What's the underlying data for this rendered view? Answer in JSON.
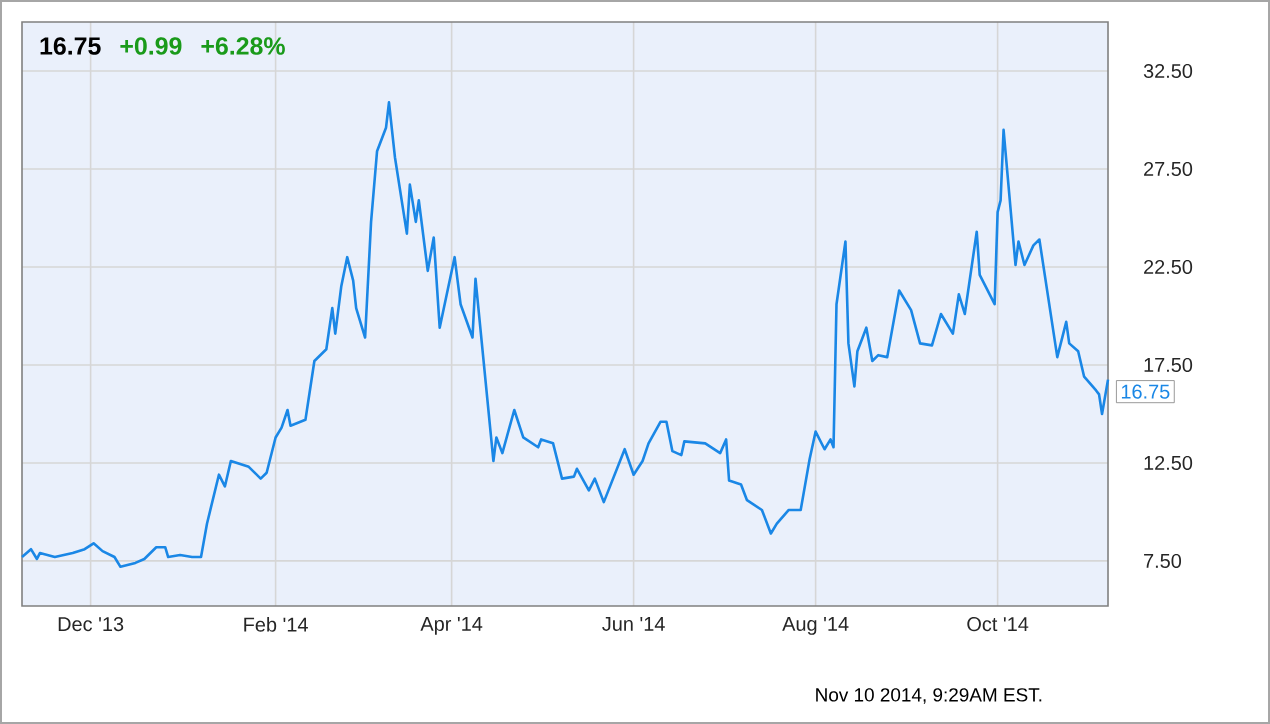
{
  "chart_data": {
    "type": "line",
    "title": "16.75",
    "x": [
      "2013-11-08",
      "2013-11-11",
      "2013-11-13",
      "2013-11-14",
      "2013-11-19",
      "2013-11-22",
      "2013-11-25",
      "2013-11-29",
      "2013-12-02",
      "2013-12-05",
      "2013-12-09",
      "2013-12-11",
      "2013-12-16",
      "2013-12-19",
      "2013-12-23",
      "2013-12-26",
      "2013-12-27",
      "2013-12-31",
      "2014-01-04",
      "2014-01-07",
      "2014-01-09",
      "2014-01-13",
      "2014-01-15",
      "2014-01-17",
      "2014-01-23",
      "2014-01-27",
      "2014-01-29",
      "2014-02-01",
      "2014-02-03",
      "2014-02-05",
      "2014-02-06",
      "2014-02-11",
      "2014-02-12",
      "2014-02-14",
      "2014-02-18",
      "2014-02-20",
      "2014-02-21",
      "2014-02-23",
      "2014-02-25",
      "2014-02-27",
      "2014-02-28",
      "2014-03-03",
      "2014-03-05",
      "2014-03-07",
      "2014-03-10",
      "2014-03-11",
      "2014-03-13",
      "2014-03-17",
      "2014-03-18",
      "2014-03-20",
      "2014-03-21",
      "2014-03-24",
      "2014-03-26",
      "2014-03-28",
      "2014-04-02",
      "2014-04-04",
      "2014-04-08",
      "2014-04-09",
      "2014-04-15",
      "2014-04-16",
      "2014-04-18",
      "2014-04-22",
      "2014-04-25",
      "2014-04-30",
      "2014-05-01",
      "2014-05-05",
      "2014-05-08",
      "2014-05-12",
      "2014-05-13",
      "2014-05-17",
      "2014-05-19",
      "2014-05-22",
      "2014-05-29",
      "2014-06-01",
      "2014-06-04",
      "2014-06-06",
      "2014-06-10",
      "2014-06-12",
      "2014-06-14",
      "2014-06-17",
      "2014-06-18",
      "2014-06-25",
      "2014-06-30",
      "2014-07-02",
      "2014-07-03",
      "2014-07-07",
      "2014-07-09",
      "2014-07-14",
      "2014-07-17",
      "2014-07-19",
      "2014-07-23",
      "2014-07-27",
      "2014-07-30",
      "2014-08-01",
      "2014-08-04",
      "2014-08-06",
      "2014-08-07",
      "2014-08-08",
      "2014-08-11",
      "2014-08-12",
      "2014-08-14",
      "2014-08-15",
      "2014-08-18",
      "2014-08-20",
      "2014-08-22",
      "2014-08-25",
      "2014-08-29",
      "2014-09-02",
      "2014-09-05",
      "2014-09-09",
      "2014-09-12",
      "2014-09-16",
      "2014-09-18",
      "2014-09-20",
      "2014-09-24",
      "2014-09-25",
      "2014-09-30",
      "2014-10-01",
      "2014-10-02",
      "2014-10-03",
      "2014-10-07",
      "2014-10-08",
      "2014-10-10",
      "2014-10-13",
      "2014-10-15",
      "2014-10-21",
      "2014-10-24",
      "2014-10-25",
      "2014-10-28",
      "2014-10-30",
      "2014-11-03",
      "2014-11-04",
      "2014-11-05",
      "2014-11-07"
    ],
    "series": [
      {
        "color": "#1a87e6",
        "values": [
          7.7,
          8.1,
          7.6,
          7.9,
          7.7,
          7.8,
          7.9,
          8.1,
          8.4,
          8.0,
          7.7,
          7.2,
          7.4,
          7.6,
          8.2,
          8.2,
          7.7,
          7.8,
          7.7,
          7.7,
          9.4,
          11.9,
          11.3,
          12.6,
          12.3,
          11.7,
          12.0,
          13.8,
          14.3,
          15.2,
          14.4,
          14.7,
          15.7,
          17.7,
          18.3,
          20.4,
          19.1,
          21.5,
          23.0,
          21.8,
          20.4,
          18.9,
          24.8,
          28.4,
          29.6,
          30.9,
          28.1,
          24.2,
          26.7,
          24.8,
          25.9,
          22.3,
          24.0,
          19.4,
          23.0,
          20.6,
          18.9,
          21.9,
          12.6,
          13.8,
          13.0,
          15.2,
          13.8,
          13.3,
          13.7,
          13.5,
          11.7,
          11.8,
          12.2,
          11.1,
          11.7,
          10.5,
          13.2,
          11.9,
          12.6,
          13.5,
          14.6,
          14.6,
          13.1,
          12.9,
          13.6,
          13.5,
          13.0,
          13.7,
          11.6,
          11.4,
          10.6,
          10.1,
          8.9,
          9.4,
          10.1,
          10.1,
          12.7,
          14.1,
          13.2,
          13.7,
          13.3,
          20.6,
          23.8,
          18.6,
          16.4,
          18.2,
          19.4,
          17.7,
          18.0,
          17.9,
          21.3,
          20.3,
          18.6,
          18.5,
          20.1,
          19.1,
          21.1,
          20.1,
          24.3,
          22.1,
          20.6,
          25.3,
          25.9,
          29.5,
          22.6,
          23.8,
          22.6,
          23.6,
          23.9,
          17.9,
          19.7,
          18.6,
          18.2,
          16.9,
          16.2,
          16.0,
          15.0,
          16.75
        ]
      }
    ],
    "xlim": [
      "2013-11-08",
      "2014-11-07"
    ],
    "xticks": [
      {
        "value": "2013-12-01",
        "label": "Dec '13"
      },
      {
        "value": "2014-02-01",
        "label": "Feb '14"
      },
      {
        "value": "2014-04-01",
        "label": "Apr '14"
      },
      {
        "value": "2014-06-01",
        "label": "Jun '14"
      },
      {
        "value": "2014-08-01",
        "label": "Aug '14"
      },
      {
        "value": "2014-10-01",
        "label": "Oct '14"
      }
    ],
    "ylim": [
      5.2,
      35
    ],
    "yticks": [
      {
        "value": 7.5,
        "label": "7.50"
      },
      {
        "value": 12.5,
        "label": "12.50"
      },
      {
        "value": 17.5,
        "label": "17.50"
      },
      {
        "value": 22.5,
        "label": "22.50"
      },
      {
        "value": 27.5,
        "label": "27.50"
      },
      {
        "value": 32.5,
        "label": "32.50"
      }
    ],
    "grid": true,
    "annotations": [
      "+0.99",
      "+6.28%",
      "Nov 10 2014, 9:29AM EST.",
      {
        "text": "16.75",
        "x": "2014-11-07",
        "y": 16.75
      }
    ]
  }
}
